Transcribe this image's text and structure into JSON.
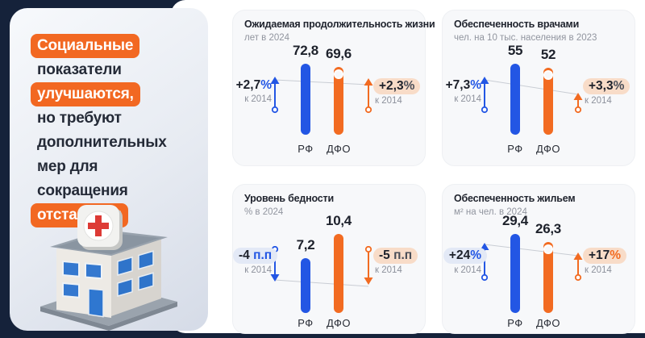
{
  "colors": {
    "accent_blue": "#2356e4",
    "accent_orange": "#f26b21",
    "peach_highlight": "#f8dcc8",
    "blue_highlight": "#e3e9f6",
    "navy_background": "#15223a"
  },
  "sidebar": {
    "lines": [
      {
        "text": "Социальные",
        "highlight": true
      },
      {
        "text": "показатели",
        "highlight": false
      },
      {
        "text": "улучшаются,",
        "highlight": true
      },
      {
        "text": "но требуют",
        "highlight": false
      },
      {
        "text": "дополнительных",
        "highlight": false
      },
      {
        "text": "мер для",
        "highlight": false
      },
      {
        "text": "сокращения",
        "highlight": false
      },
      {
        "text": "отставания",
        "highlight": true
      }
    ],
    "illustration": "hospital-building"
  },
  "cards": [
    {
      "title": "Ожидаемая продолжительность жизни",
      "subtitle": "лет в 2024",
      "rf_label": "РФ",
      "dfo_label": "ДФО",
      "rf_value": "72,8",
      "dfo_value": "69,6",
      "left": {
        "value": "+2,7",
        "unit": "%",
        "caption": "к 2014",
        "direction": "up",
        "highlight": "none",
        "unit_color": "blue"
      },
      "right": {
        "value": "+2,3",
        "unit": "%",
        "caption": "к 2014",
        "direction": "up",
        "highlight": "peach",
        "unit_color": "dark"
      }
    },
    {
      "title": "Обеспеченность врачами",
      "subtitle": "чел. на 10 тыс. населения в 2023",
      "rf_label": "РФ",
      "dfo_label": "ДФО",
      "rf_value": "55",
      "dfo_value": "52",
      "left": {
        "value": "+7,3",
        "unit": "%",
        "caption": "к 2014",
        "direction": "up",
        "highlight": "none",
        "unit_color": "blue"
      },
      "right": {
        "value": "+3,3",
        "unit": "%",
        "caption": "к 2014",
        "direction": "up",
        "highlight": "peach",
        "unit_color": "dark"
      }
    },
    {
      "title": "Уровень бедности",
      "subtitle": "% в 2024",
      "rf_label": "РФ",
      "dfo_label": "ДФО",
      "rf_value": "7,2",
      "dfo_value": "10,4",
      "left": {
        "value": "-4",
        "unit": " п.п",
        "caption": "к 2014",
        "direction": "down",
        "highlight": "blue",
        "unit_color": "blue"
      },
      "right": {
        "value": "-5",
        "unit": " п.п",
        "caption": "к 2014",
        "direction": "down",
        "highlight": "peach",
        "unit_color": "dark"
      }
    },
    {
      "title": "Обеспеченность жильем",
      "subtitle": "м² на чел. в 2024",
      "rf_label": "РФ",
      "dfo_label": "ДФО",
      "rf_value": "29,4",
      "dfo_value": "26,3",
      "left": {
        "value": "+24",
        "unit": "%",
        "caption": "к 2014",
        "direction": "up",
        "highlight": "blue",
        "unit_color": "blue"
      },
      "right": {
        "value": "+17",
        "unit": "%",
        "caption": "к 2014",
        "direction": "up",
        "highlight": "peach",
        "unit_color": "orange"
      }
    }
  ],
  "chart_data": [
    {
      "type": "bar",
      "title": "Ожидаемая продолжительность жизни",
      "subtitle": "лет в 2024",
      "categories": [
        "РФ",
        "ДФО"
      ],
      "values": [
        72.8,
        69.6
      ],
      "changes_vs_2014": [
        "+2,7%",
        "+2,3%"
      ],
      "series_colors": [
        "#2356e4",
        "#f26b21"
      ],
      "legend_position": "none",
      "grid": false
    },
    {
      "type": "bar",
      "title": "Обеспеченность врачами",
      "subtitle": "чел. на 10 тыс. населения в 2023",
      "categories": [
        "РФ",
        "ДФО"
      ],
      "values": [
        55,
        52
      ],
      "changes_vs_2014": [
        "+7,3%",
        "+3,3%"
      ],
      "series_colors": [
        "#2356e4",
        "#f26b21"
      ],
      "legend_position": "none",
      "grid": false
    },
    {
      "type": "bar",
      "title": "Уровень бедности",
      "subtitle": "% в 2024",
      "categories": [
        "РФ",
        "ДФО"
      ],
      "values": [
        7.2,
        10.4
      ],
      "changes_vs_2014": [
        "-4 п.п",
        "-5 п.п"
      ],
      "series_colors": [
        "#2356e4",
        "#f26b21"
      ],
      "legend_position": "none",
      "grid": false
    },
    {
      "type": "bar",
      "title": "Обеспеченность жильем",
      "subtitle": "м² на чел. в 2024",
      "categories": [
        "РФ",
        "ДФО"
      ],
      "values": [
        29.4,
        26.3
      ],
      "changes_vs_2014": [
        "+24%",
        "+17%"
      ],
      "series_colors": [
        "#2356e4",
        "#f26b21"
      ],
      "legend_position": "none",
      "grid": false
    }
  ]
}
